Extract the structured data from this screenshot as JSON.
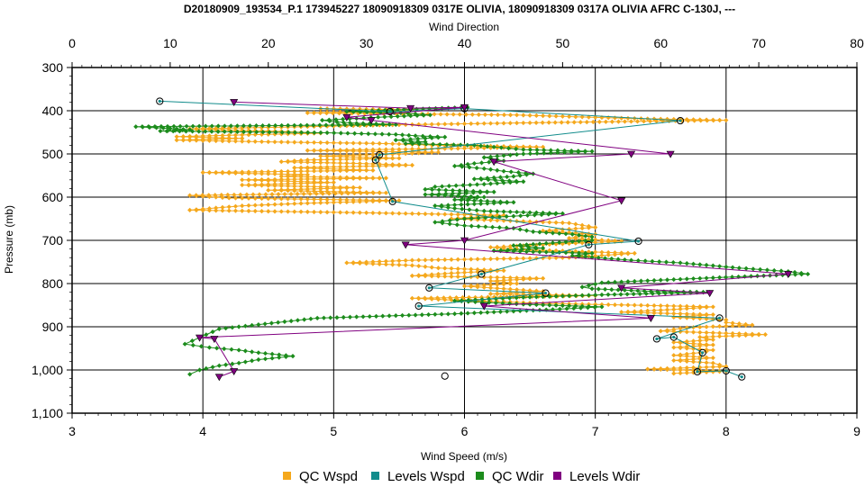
{
  "chart_data": {
    "type": "line",
    "title": "D20180909_193534_P.1 173945227 18090918309 0317E OLIVIA, 18090918309 0317A OLIVIA AFRC C-130J, ---",
    "xlabel_bottom": "Wind Speed (m/s)",
    "xlabel_top": "Wind Direction",
    "ylabel": "Pressure (mb)",
    "xlim_bottom": [
      3,
      9
    ],
    "xlim_top": [
      0,
      80
    ],
    "ylim": [
      300,
      1100
    ],
    "y_inverted": true,
    "grid": true,
    "legend_position": "bottom",
    "x_ticks_bottom": [
      "3",
      "4",
      "5",
      "6",
      "7",
      "8",
      "9"
    ],
    "x_ticks_top": [
      "0",
      "10",
      "20",
      "30",
      "40",
      "50",
      "60",
      "70",
      "80"
    ],
    "y_ticks": [
      "300",
      "400",
      "500",
      "600",
      "700",
      "800",
      "900",
      "1,000",
      "1,100"
    ],
    "y_tick_values": [
      300,
      400,
      500,
      600,
      700,
      800,
      900,
      1000,
      1100
    ],
    "series": [
      {
        "name": "QC Wspd",
        "color": "#F5A81C",
        "axis": "bottom",
        "marker": "diamond",
        "points": [
          [
            4.9,
            395
          ],
          [
            5.6,
            398
          ],
          [
            5.3,
            402
          ],
          [
            4.8,
            405
          ],
          [
            6.4,
            410
          ],
          [
            7.3,
            418
          ],
          [
            8.0,
            422
          ],
          [
            6.5,
            428
          ],
          [
            5.6,
            432
          ],
          [
            4.6,
            438
          ],
          [
            3.9,
            442
          ],
          [
            4.6,
            448
          ],
          [
            4.9,
            452
          ],
          [
            4.3,
            456
          ],
          [
            3.8,
            460
          ],
          [
            4.3,
            464
          ],
          [
            3.8,
            468
          ],
          [
            4.5,
            472
          ],
          [
            5.4,
            476
          ],
          [
            5.8,
            480
          ],
          [
            6.6,
            484
          ],
          [
            5.8,
            488
          ],
          [
            4.8,
            492
          ],
          [
            5.8,
            496
          ],
          [
            5.5,
            500
          ],
          [
            4.9,
            505
          ],
          [
            5.5,
            510
          ],
          [
            4.8,
            514
          ],
          [
            4.6,
            518
          ],
          [
            5.2,
            522
          ],
          [
            5.6,
            526
          ],
          [
            4.7,
            532
          ],
          [
            5.3,
            538
          ],
          [
            4.0,
            543
          ],
          [
            4.8,
            548
          ],
          [
            4.6,
            552
          ],
          [
            5.4,
            556
          ],
          [
            4.3,
            560
          ],
          [
            5.0,
            566
          ],
          [
            4.3,
            572
          ],
          [
            5.2,
            578
          ],
          [
            4.5,
            584
          ],
          [
            5.4,
            590
          ],
          [
            3.9,
            596
          ],
          [
            4.2,
            602
          ],
          [
            5.5,
            608
          ],
          [
            4.8,
            614
          ],
          [
            4.3,
            620
          ],
          [
            3.9,
            630
          ],
          [
            5.2,
            636
          ],
          [
            6.3,
            642
          ],
          [
            5.9,
            650
          ],
          [
            6.8,
            660
          ],
          [
            7.0,
            670
          ],
          [
            6.6,
            678
          ],
          [
            7.0,
            686
          ],
          [
            6.8,
            695
          ],
          [
            7.2,
            702
          ],
          [
            6.6,
            710
          ],
          [
            6.2,
            716
          ],
          [
            6.5,
            722
          ],
          [
            7.3,
            730
          ],
          [
            6.8,
            740
          ],
          [
            5.6,
            746
          ],
          [
            5.1,
            752
          ],
          [
            5.6,
            758
          ],
          [
            5.8,
            764
          ],
          [
            6.3,
            770
          ],
          [
            5.9,
            776
          ],
          [
            5.6,
            782
          ],
          [
            6.6,
            788
          ],
          [
            6.2,
            794
          ],
          [
            6.4,
            800
          ],
          [
            6.0,
            806
          ],
          [
            6.3,
            812
          ],
          [
            6.6,
            818
          ],
          [
            6.2,
            824
          ],
          [
            7.0,
            828
          ],
          [
            5.6,
            834
          ],
          [
            5.9,
            838
          ],
          [
            6.3,
            842
          ],
          [
            6.6,
            846
          ],
          [
            7.3,
            850
          ],
          [
            7.9,
            854
          ],
          [
            7.6,
            860
          ],
          [
            7.2,
            866
          ],
          [
            7.9,
            872
          ],
          [
            7.6,
            878
          ],
          [
            8.0,
            884
          ],
          [
            8.0,
            890
          ],
          [
            8.2,
            896
          ],
          [
            7.7,
            902
          ],
          [
            7.5,
            910
          ],
          [
            8.3,
            918
          ],
          [
            7.8,
            924
          ],
          [
            7.9,
            930
          ],
          [
            7.6,
            936
          ],
          [
            7.9,
            942
          ],
          [
            7.6,
            948
          ],
          [
            7.9,
            954
          ],
          [
            7.8,
            960
          ],
          [
            7.6,
            966
          ],
          [
            7.9,
            972
          ],
          [
            7.6,
            978
          ],
          [
            7.9,
            984
          ],
          [
            8.0,
            992
          ],
          [
            7.4,
            998
          ],
          [
            8.0,
            1003
          ],
          [
            7.6,
            1008
          ]
        ]
      },
      {
        "name": "Levels Wspd",
        "color": "#128C8C",
        "axis": "bottom",
        "marker": "circle",
        "points": [
          [
            3.67,
            378
          ],
          [
            5.43,
            402
          ],
          [
            6.0,
            395
          ],
          [
            7.65,
            423
          ],
          [
            5.35,
            502
          ],
          [
            5.32,
            514
          ],
          [
            5.45,
            610
          ],
          [
            7.33,
            702
          ],
          [
            6.95,
            710
          ],
          [
            6.13,
            778
          ],
          [
            5.73,
            810
          ],
          [
            6.62,
            822
          ],
          [
            5.65,
            852
          ],
          [
            7.95,
            880
          ],
          [
            7.47,
            928
          ],
          [
            7.6,
            924
          ],
          [
            7.82,
            960
          ],
          [
            7.78,
            1004
          ],
          [
            8.0,
            1002
          ],
          [
            8.12,
            1016
          ]
        ]
      },
      {
        "name": "QC Wdir",
        "color": "#1C8C1C",
        "axis": "top",
        "marker": "diamond",
        "points": [
          [
            40.3,
            392
          ],
          [
            28.0,
            402
          ],
          [
            33.5,
            405
          ],
          [
            36.5,
            410
          ],
          [
            31.2,
            415
          ],
          [
            29.0,
            418
          ],
          [
            25.5,
            422
          ],
          [
            27.0,
            426
          ],
          [
            29.0,
            429
          ],
          [
            33.0,
            432
          ],
          [
            6.5,
            437
          ],
          [
            10.0,
            441
          ],
          [
            12.0,
            444
          ],
          [
            9.0,
            447
          ],
          [
            26.0,
            451
          ],
          [
            33.0,
            455
          ],
          [
            35.0,
            458
          ],
          [
            38.0,
            461
          ],
          [
            36.0,
            464
          ],
          [
            33.0,
            468
          ],
          [
            36.0,
            472
          ],
          [
            34.0,
            476
          ],
          [
            41.0,
            480
          ],
          [
            43.0,
            484
          ],
          [
            46.0,
            490
          ],
          [
            53.0,
            494
          ],
          [
            46.0,
            500
          ],
          [
            42.0,
            508
          ],
          [
            44.0,
            516
          ],
          [
            41.0,
            522
          ],
          [
            39.0,
            528
          ],
          [
            42.0,
            534
          ],
          [
            44.0,
            540
          ],
          [
            47.0,
            546
          ],
          [
            45.0,
            552
          ],
          [
            41.0,
            558
          ],
          [
            46.0,
            564
          ],
          [
            42.0,
            570
          ],
          [
            37.0,
            576
          ],
          [
            36.0,
            582
          ],
          [
            43.0,
            588
          ],
          [
            36.0,
            594
          ],
          [
            42.0,
            600
          ],
          [
            39.0,
            606
          ],
          [
            45.0,
            612
          ],
          [
            37.0,
            620
          ],
          [
            39.0,
            626
          ],
          [
            42.0,
            632
          ],
          [
            50.0,
            638
          ],
          [
            45.0,
            644
          ],
          [
            40.0,
            650
          ],
          [
            37.0,
            658
          ],
          [
            40.0,
            666
          ],
          [
            45.0,
            672
          ],
          [
            47.0,
            680
          ],
          [
            51.0,
            686
          ],
          [
            53.0,
            692
          ],
          [
            53.0,
            700
          ],
          [
            49.0,
            706
          ],
          [
            45.0,
            712
          ],
          [
            48.0,
            718
          ],
          [
            43.0,
            724
          ],
          [
            53.0,
            730
          ],
          [
            51.0,
            736
          ],
          [
            57.0,
            746
          ],
          [
            62.0,
            752
          ],
          [
            68.0,
            764
          ],
          [
            73.0,
            772
          ],
          [
            75.0,
            778
          ],
          [
            66.0,
            786
          ],
          [
            58.0,
            794
          ],
          [
            54.0,
            798
          ],
          [
            52.0,
            808
          ],
          [
            53.0,
            812
          ],
          [
            59.0,
            818
          ],
          [
            65.0,
            820
          ],
          [
            54.0,
            826
          ],
          [
            46.0,
            832
          ],
          [
            39.0,
            840
          ],
          [
            46.0,
            848
          ],
          [
            54.0,
            854
          ],
          [
            49.0,
            860
          ],
          [
            39.0,
            870
          ],
          [
            25.0,
            880
          ],
          [
            15.0,
            905
          ],
          [
            13.0,
            925
          ],
          [
            11.5,
            940
          ],
          [
            14.0,
            948
          ],
          [
            17.0,
            954
          ],
          [
            19.0,
            960
          ],
          [
            22.5,
            968
          ],
          [
            19.0,
            976
          ],
          [
            17.0,
            984
          ],
          [
            15.0,
            990
          ],
          [
            13.0,
            1000
          ],
          [
            12.0,
            1010
          ]
        ]
      },
      {
        "name": "Levels Wdir",
        "color": "#800080",
        "axis": "top",
        "marker": "triangle",
        "points": [
          [
            16.5,
            380
          ],
          [
            34.5,
            394
          ],
          [
            40.0,
            392
          ],
          [
            28.0,
            415
          ],
          [
            30.5,
            422
          ],
          [
            61.0,
            500
          ],
          [
            57.0,
            500
          ],
          [
            43.0,
            518
          ],
          [
            56.0,
            608
          ],
          [
            40.0,
            700
          ],
          [
            34.0,
            710
          ],
          [
            73.0,
            778
          ],
          [
            56.0,
            810
          ],
          [
            65.0,
            822
          ],
          [
            42.0,
            852
          ],
          [
            59.0,
            880
          ],
          [
            13.0,
            925
          ],
          [
            14.5,
            928
          ],
          [
            16.5,
            1003
          ],
          [
            15.0,
            1016
          ]
        ]
      }
    ],
    "extra_points": [
      {
        "marker": "circle",
        "x_bottom": 5.85,
        "y": 1014
      }
    ]
  }
}
